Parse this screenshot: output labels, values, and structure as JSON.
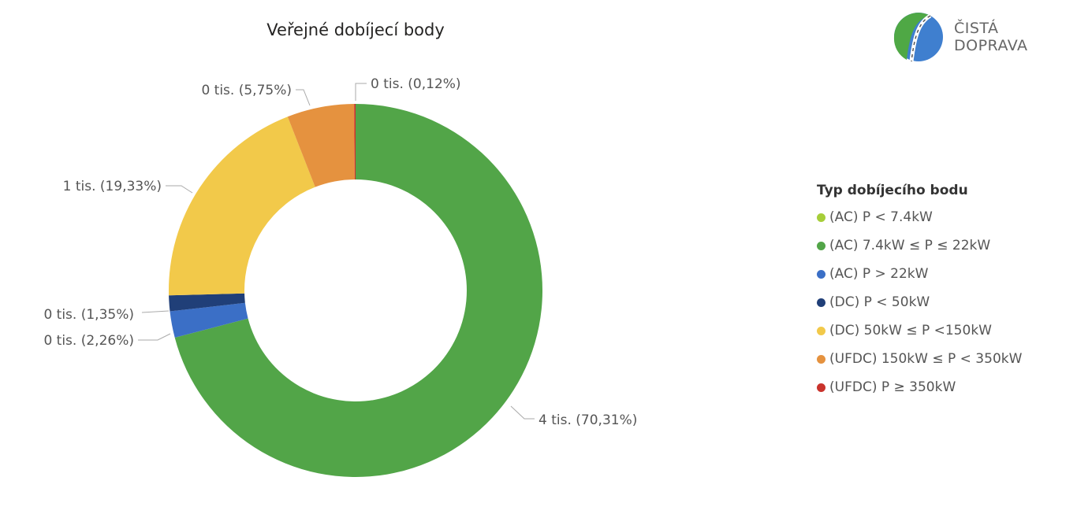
{
  "logo": {
    "line1": "ČISTÁ",
    "line2": "DOPRAVA"
  },
  "chart_data": {
    "type": "pie",
    "variant": "donut",
    "title": "Veřejné dobíjecí body",
    "legend_title": "Typ dobíjecího bodu",
    "legend_position": "right",
    "slices": [
      {
        "name": "(AC) P < 7.4kW",
        "percent": 0,
        "label": "",
        "color": "#A6CE39"
      },
      {
        "name": "(AC) 7.4kW ≤ P ≤ 22kW",
        "percent": 70.31,
        "label": "4 tis. (70,31%)",
        "color": "#52A548"
      },
      {
        "name": "(AC) P > 22kW",
        "percent": 2.26,
        "label": "0 tis. (2,26%)",
        "color": "#3B6FC6"
      },
      {
        "name": "(DC) P < 50kW",
        "percent": 1.35,
        "label": "0 tis. (1,35%)",
        "color": "#203F78"
      },
      {
        "name": "(DC) 50kW ≤ P <150kW",
        "percent": 19.33,
        "label": "1 tis. (19,33%)",
        "color": "#F2C94A"
      },
      {
        "name": "(UFDC) 150kW ≤ P < 350kW",
        "percent": 5.75,
        "label": "0 tis. (5,75%)",
        "color": "#E5923F"
      },
      {
        "name": "(UFDC) P ≥ 350kW",
        "percent": 0.12,
        "label": "0 tis. (0,12%)",
        "color": "#C9332C"
      }
    ]
  }
}
